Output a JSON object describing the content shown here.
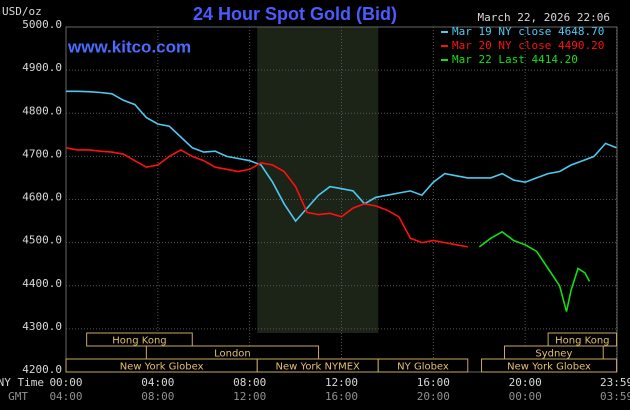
{
  "chart_data": {
    "type": "line",
    "title": "24 Hour Spot Gold (Bid)",
    "y_unit": "USD/oz",
    "timestamp": "March 22, 2026 22:06",
    "site": "www.kitco.com",
    "x_axis_label": "NY Time",
    "x2_axis_label": "GMT",
    "xlim": [
      0,
      24
    ],
    "xticks": [
      {
        "value": 0,
        "label": "00:00"
      },
      {
        "value": 4,
        "label": "04:00"
      },
      {
        "value": 8,
        "label": "08:00"
      },
      {
        "value": 12,
        "label": "12:00"
      },
      {
        "value": 16,
        "label": "16:00"
      },
      {
        "value": 20,
        "label": "20:00"
      },
      {
        "value": 23.98,
        "label": "23:59"
      }
    ],
    "x2ticks": [
      "04:00",
      "08:00",
      "12:00",
      "16:00",
      "20:00",
      "00:00",
      "03:59"
    ],
    "ylim": [
      4200,
      5000
    ],
    "yticks": [
      {
        "value": 4200,
        "label": "4200.0"
      },
      {
        "value": 4300,
        "label": "4300.0"
      },
      {
        "value": 4400,
        "label": "4400.0"
      },
      {
        "value": 4500,
        "label": "4500.0"
      },
      {
        "value": 4600,
        "label": "4600.0"
      },
      {
        "value": 4700,
        "label": "4700.0"
      },
      {
        "value": 4800,
        "label": "4800.0"
      },
      {
        "value": 4900,
        "label": "4900.0"
      },
      {
        "value": 5000,
        "label": "5000.0"
      }
    ],
    "grid": true,
    "legend": "top-right",
    "series": [
      {
        "name": "Mar 19 NY close 4648.70",
        "color": "#4fc8f0",
        "x": [
          0,
          0.5,
          1,
          1.5,
          2,
          2.5,
          3,
          3.5,
          4,
          4.5,
          5,
          5.5,
          6,
          6.5,
          7,
          7.5,
          8,
          8.5,
          9,
          9.5,
          10,
          10.5,
          11,
          11.5,
          12,
          12.5,
          13,
          13.5,
          14,
          14.5,
          15,
          15.5,
          16,
          16.5,
          17,
          17.5,
          18,
          18.5,
          19,
          19.5,
          20,
          20.5,
          21,
          21.5,
          22,
          22.5,
          23,
          23.5,
          23.98
        ],
        "values": [
          4851,
          4851,
          4850,
          4848,
          4845,
          4830,
          4820,
          4790,
          4775,
          4770,
          4745,
          4720,
          4710,
          4712,
          4700,
          4695,
          4690,
          4680,
          4640,
          4590,
          4550,
          4580,
          4610,
          4630,
          4625,
          4620,
          4590,
          4605,
          4610,
          4615,
          4620,
          4610,
          4640,
          4660,
          4655,
          4650,
          4650,
          4650,
          4660,
          4645,
          4640,
          4650,
          4660,
          4665,
          4680,
          4690,
          4700,
          4730,
          4720
        ]
      },
      {
        "name": "Mar 20 NY close 4490.20",
        "color": "#ff1010",
        "x": [
          0,
          0.5,
          1,
          1.5,
          2,
          2.5,
          3,
          3.5,
          4,
          4.5,
          5,
          5.5,
          6,
          6.5,
          7,
          7.5,
          8,
          8.5,
          9,
          9.5,
          10,
          10.5,
          11,
          11.5,
          12,
          12.5,
          13,
          13.5,
          14,
          14.5,
          15,
          15.5,
          16,
          16.5,
          17,
          17.5
        ],
        "values": [
          4720,
          4715,
          4715,
          4712,
          4710,
          4705,
          4690,
          4675,
          4680,
          4700,
          4715,
          4700,
          4690,
          4675,
          4670,
          4665,
          4670,
          4685,
          4680,
          4665,
          4630,
          4570,
          4565,
          4568,
          4560,
          4580,
          4590,
          4585,
          4575,
          4560,
          4510,
          4500,
          4505,
          4500,
          4495,
          4490
        ]
      },
      {
        "name": "Mar 22 Last 4414.20",
        "color": "#10e010",
        "x": [
          18,
          18.5,
          19,
          19.5,
          20,
          20.5,
          21,
          21.5,
          21.8,
          22,
          22.3,
          22.6,
          22.8
        ],
        "values": [
          4490,
          4510,
          4525,
          4505,
          4495,
          4480,
          4440,
          4400,
          4340,
          4390,
          4440,
          4430,
          4410
        ]
      }
    ],
    "session_rows": [
      [
        {
          "label": "Hong Kong",
          "start": 0.9,
          "end": 5.5
        },
        {
          "label": "Hong Kong",
          "start": 21,
          "end": 23.98
        }
      ],
      [
        {
          "label": "London",
          "start": 3.5,
          "end": 11
        },
        {
          "label": "Sydney",
          "start": 19.1,
          "end": 23.4
        }
      ],
      [
        {
          "label": "New York Globex",
          "start": 0,
          "end": 8.33
        },
        {
          "label": "New York NYMEX",
          "start": 8.33,
          "end": 13.6
        },
        {
          "label": "NY Globex",
          "start": 13.6,
          "end": 17.5
        },
        {
          "label": "New York Globex",
          "start": 18.1,
          "end": 23.98
        }
      ]
    ]
  }
}
